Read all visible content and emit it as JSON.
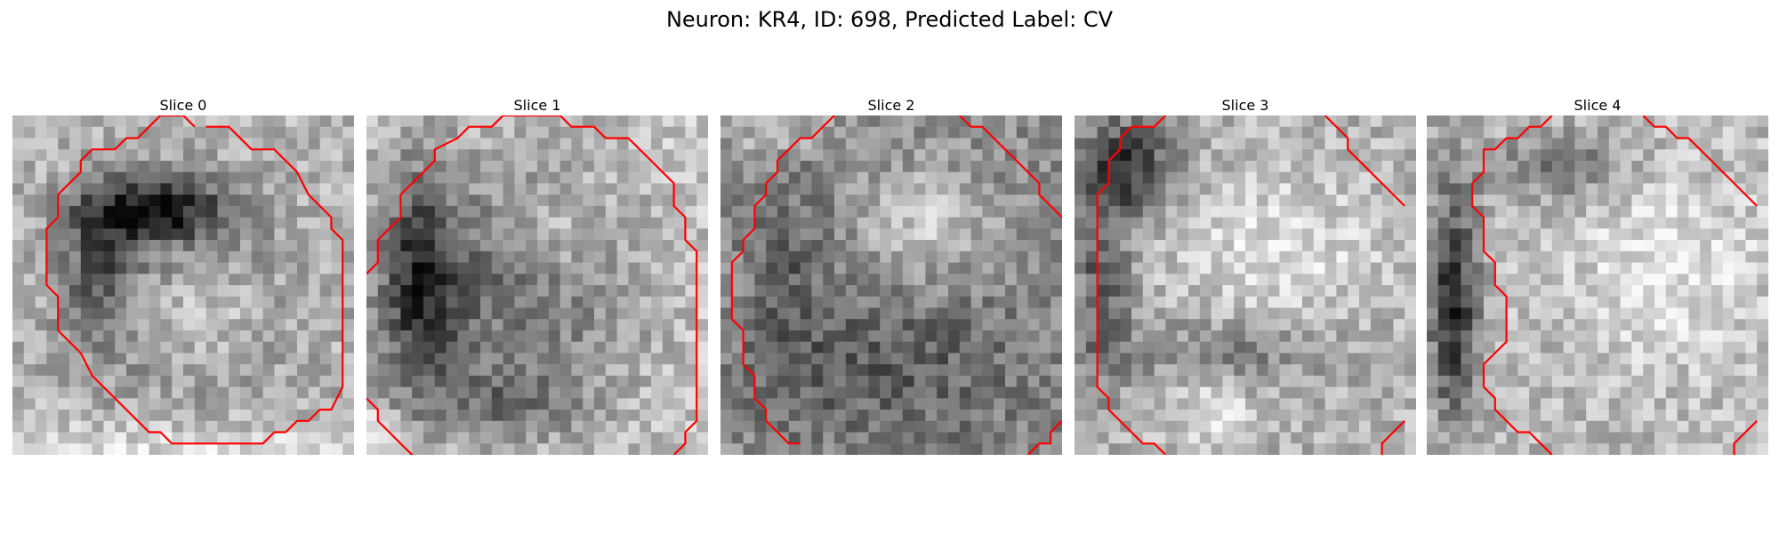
{
  "figure": {
    "title": "Neuron: KR4, ID: 698, Predicted Label: CV"
  },
  "contour_color": "#ff0000",
  "colormap": "grayscale",
  "panels": [
    {
      "title": "Slice 0"
    },
    {
      "title": "Slice 1"
    },
    {
      "title": "Slice 2"
    },
    {
      "title": "Slice 3"
    },
    {
      "title": "Slice 4"
    }
  ]
}
